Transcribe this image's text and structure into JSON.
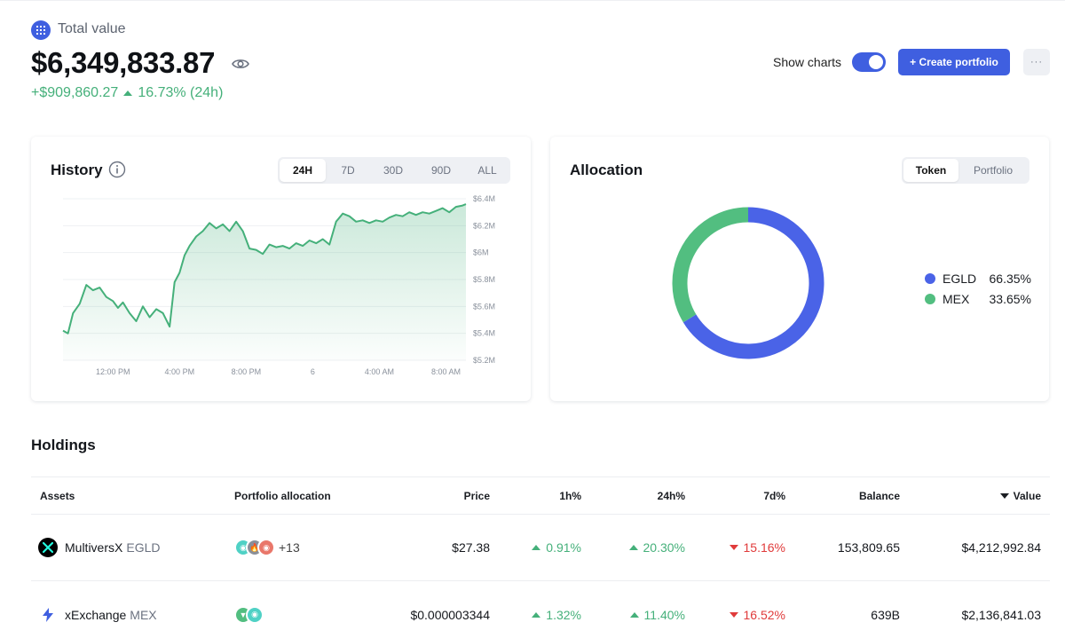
{
  "header": {
    "total_label": "Total value",
    "total_amount": "$6,349,833.87",
    "change_amount": "+$909,860.27",
    "change_pct": "16.73% (24h)",
    "show_charts_label": "Show charts",
    "show_charts_on": true,
    "create_label": "+ Create portfolio",
    "more_label": "···"
  },
  "colors": {
    "accent": "#3f5fe0",
    "positive": "#45b07a",
    "negative": "#e03b3b",
    "egld": "#4a63e7",
    "mex": "#52be80"
  },
  "history": {
    "title": "History",
    "ranges": [
      "24H",
      "7D",
      "30D",
      "90D",
      "ALL"
    ],
    "active_range": "24H"
  },
  "allocation": {
    "title": "Allocation",
    "tabs": [
      "Token",
      "Portfolio"
    ],
    "active_tab": "Token",
    "legend": [
      {
        "name": "EGLD",
        "pct": "66.35%"
      },
      {
        "name": "MEX",
        "pct": "33.65%"
      }
    ]
  },
  "holdings": {
    "title": "Holdings",
    "columns": {
      "assets": "Assets",
      "allocation": "Portfolio allocation",
      "price": "Price",
      "h1": "1h%",
      "h24": "24h%",
      "d7": "7d%",
      "balance": "Balance",
      "value": "Value"
    },
    "rows": [
      {
        "name": "MultiversX",
        "ticker": "EGLD",
        "more": "+13",
        "price": "$27.38",
        "h1": "0.91%",
        "h24": "20.30%",
        "d7": "15.16%",
        "balance": "153,809.65",
        "value": "$4,212,992.84"
      },
      {
        "name": "xExchange",
        "ticker": "MEX",
        "more": "",
        "price": "$0.000003344",
        "h1": "1.32%",
        "h24": "11.40%",
        "d7": "16.52%",
        "balance": "639B",
        "value": "$2,136,841.03"
      }
    ]
  },
  "chart_data": {
    "type": "area",
    "title": "",
    "xlabel": "",
    "ylabel": "",
    "x_ticks": [
      "12:00 PM",
      "4:00 PM",
      "8:00 PM",
      "6",
      "4:00 AM",
      "8:00 AM"
    ],
    "y_ticks": [
      "$6.4M",
      "$6.2M",
      "$6M",
      "$5.8M",
      "$5.6M",
      "$5.4M",
      "$5.2M"
    ],
    "ylim": [
      5.2,
      6.4
    ],
    "y_unit": "$M",
    "x_hours": [
      9,
      9.3,
      9.6,
      10,
      10.4,
      10.8,
      11.2,
      11.6,
      12,
      12.3,
      12.6,
      13,
      13.4,
      13.8,
      14.2,
      14.6,
      15,
      15.4,
      15.7,
      16,
      16.3,
      16.6,
      17,
      17.4,
      17.8,
      18.2,
      18.6,
      19,
      19.4,
      19.8,
      20.2,
      20.6,
      21,
      21.4,
      21.8,
      22.2,
      22.6,
      23,
      23.4,
      23.8,
      24.2,
      24.6,
      25,
      25.4,
      25.8,
      26.2,
      26.6,
      27,
      27.4,
      27.8,
      28.2,
      28.6,
      29,
      29.4,
      29.8,
      30.2,
      30.6,
      31,
      31.4,
      31.8,
      32.2,
      32.6,
      33,
      33.2
    ],
    "values": [
      5.42,
      5.4,
      5.55,
      5.62,
      5.76,
      5.72,
      5.74,
      5.67,
      5.64,
      5.59,
      5.63,
      5.55,
      5.49,
      5.6,
      5.52,
      5.58,
      5.55,
      5.45,
      5.78,
      5.85,
      5.98,
      6.05,
      6.12,
      6.16,
      6.22,
      6.18,
      6.21,
      6.16,
      6.23,
      6.16,
      6.03,
      6.02,
      5.99,
      6.06,
      6.04,
      6.05,
      6.03,
      6.07,
      6.05,
      6.09,
      6.07,
      6.1,
      6.06,
      6.23,
      6.29,
      6.27,
      6.23,
      6.24,
      6.22,
      6.24,
      6.23,
      6.26,
      6.28,
      6.27,
      6.3,
      6.28,
      6.3,
      6.29,
      6.31,
      6.33,
      6.3,
      6.34,
      6.35,
      6.36
    ]
  }
}
